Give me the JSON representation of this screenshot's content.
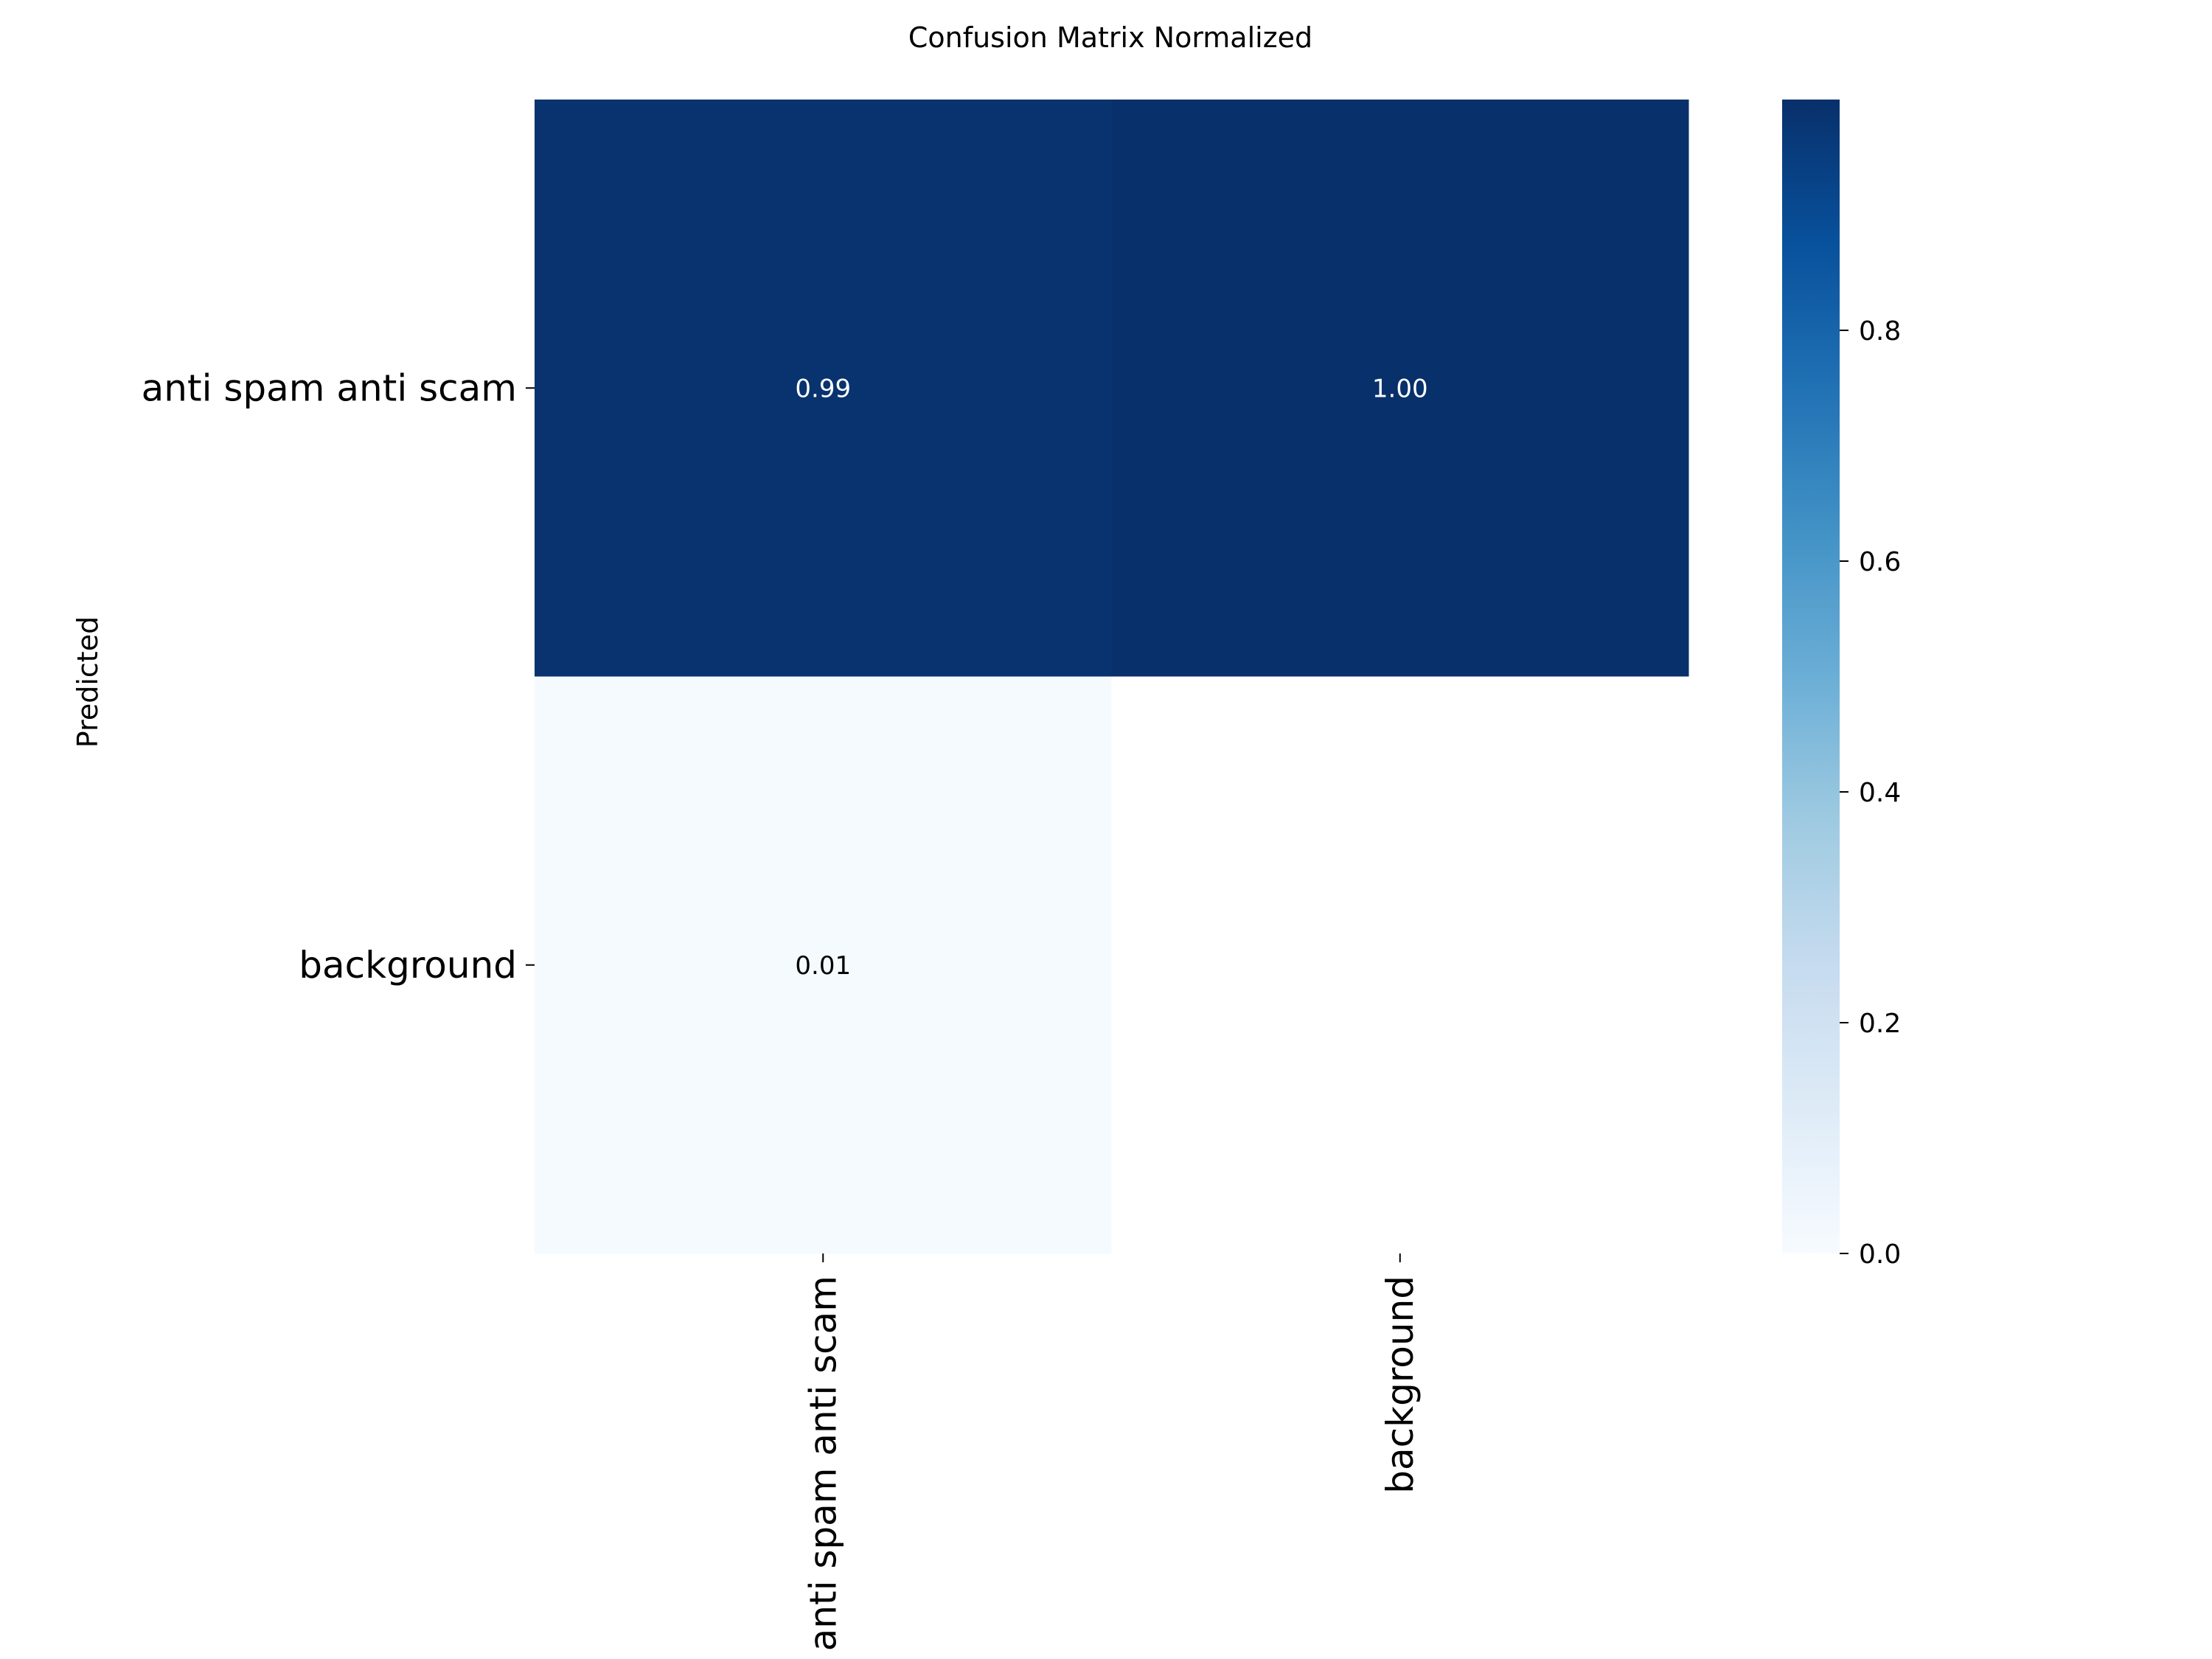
{
  "chart_data": {
    "type": "heatmap",
    "title": "Confusion Matrix Normalized",
    "xlabel": "",
    "ylabel": "Predicted",
    "x_categories": [
      "anti spam anti scam",
      "background"
    ],
    "y_categories": [
      "anti spam anti scam",
      "background"
    ],
    "values": [
      [
        0.99,
        1.0
      ],
      [
        0.01,
        null
      ]
    ],
    "cell_labels": [
      [
        "0.99",
        "1.00"
      ],
      [
        "0.01",
        ""
      ]
    ],
    "colormap": "Blues",
    "vmin": 0.0,
    "vmax": 1.0,
    "colorbar_ticks": [
      0.0,
      0.2,
      0.4,
      0.6,
      0.8
    ],
    "colorbar_tick_labels": [
      "0.0",
      "0.2",
      "0.4",
      "0.6",
      "0.8"
    ],
    "colors": {
      "cmap_low": "#f7fbff",
      "cmap_high": "#08306b",
      "empty_cell": "#ffffff"
    }
  }
}
